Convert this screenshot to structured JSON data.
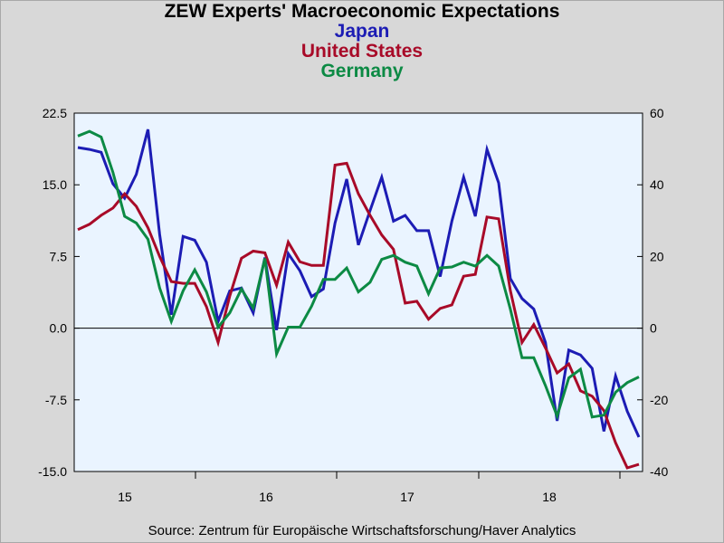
{
  "chart_data": {
    "type": "line",
    "title": "ZEW Experts' Macroeconomic Expectations",
    "source": "Source:  Zentrum für Europäische Wirtschaftsforschung/Haver Analytics",
    "x_tick_labels": [
      "15",
      "16",
      "17",
      "18"
    ],
    "left_axis": {
      "ylim": [
        -15,
        22.5
      ],
      "ticks": [
        "-15.0",
        "-7.5",
        "0.0",
        "7.5",
        "15.0",
        "22.5"
      ],
      "tick_values": [
        -15,
        -7.5,
        0,
        7.5,
        15,
        22.5
      ]
    },
    "right_axis": {
      "ylim": [
        -40,
        60
      ],
      "ticks": [
        "-40",
        "-20",
        "0",
        "20",
        "40",
        "60"
      ],
      "tick_values": [
        -40,
        -20,
        0,
        20,
        40,
        60
      ]
    },
    "series": [
      {
        "name": "Japan",
        "axis": "left",
        "color": "#1c1cb4",
        "values": [
          18.9,
          18.7,
          18.4,
          15.1,
          13.6,
          16.1,
          20.8,
          9.8,
          1.4,
          9.6,
          9.2,
          6.9,
          0.7,
          3.9,
          4.2,
          1.6,
          7.4,
          -0.2,
          7.8,
          6.0,
          3.3,
          4.1,
          11.0,
          15.6,
          8.7,
          12.3,
          15.8,
          11.2,
          11.8,
          10.2,
          10.2,
          5.4,
          11.2,
          15.8,
          11.7,
          18.7,
          15.2,
          5.2,
          3.1,
          2.0,
          -1.5,
          -9.7,
          -2.3,
          -2.8,
          -4.2,
          -10.8,
          -5.0,
          -8.7,
          -11.4
        ]
      },
      {
        "name": "United States",
        "axis": "right",
        "color": "#a80a28",
        "values": [
          27.5,
          29.0,
          31.5,
          33.5,
          37.5,
          34.0,
          28.0,
          20.0,
          13.0,
          12.5,
          12.5,
          6.0,
          -4.0,
          9.0,
          19.5,
          21.5,
          21.0,
          12.0,
          24.0,
          18.5,
          17.5,
          17.5,
          45.5,
          46.0,
          37.5,
          31.5,
          26.0,
          22.0,
          7.0,
          7.5,
          2.5,
          5.5,
          6.5,
          14.5,
          15.0,
          31.0,
          30.5,
          10.5,
          -4.0,
          1.0,
          -5.5,
          -12.5,
          -10.0,
          -17.5,
          -19.0,
          -23.0,
          -32.0,
          -39.0,
          -38.0
        ]
      },
      {
        "name": "Germany",
        "axis": "left",
        "color": "#0c8a44",
        "values": [
          20.1,
          20.6,
          20.0,
          16.3,
          11.7,
          11.0,
          9.3,
          4.2,
          0.7,
          3.9,
          6.1,
          3.8,
          0.1,
          1.6,
          4.1,
          2.1,
          7.3,
          -2.7,
          0.1,
          0.1,
          2.3,
          5.1,
          5.1,
          6.3,
          3.8,
          4.8,
          7.2,
          7.6,
          6.9,
          6.5,
          3.6,
          6.3,
          6.4,
          6.9,
          6.5,
          7.6,
          6.5,
          2.0,
          -3.1,
          -3.1,
          -6.0,
          -9.2,
          -5.2,
          -4.3,
          -9.3,
          -9.1,
          -6.7,
          -5.7,
          -5.1
        ]
      }
    ]
  }
}
